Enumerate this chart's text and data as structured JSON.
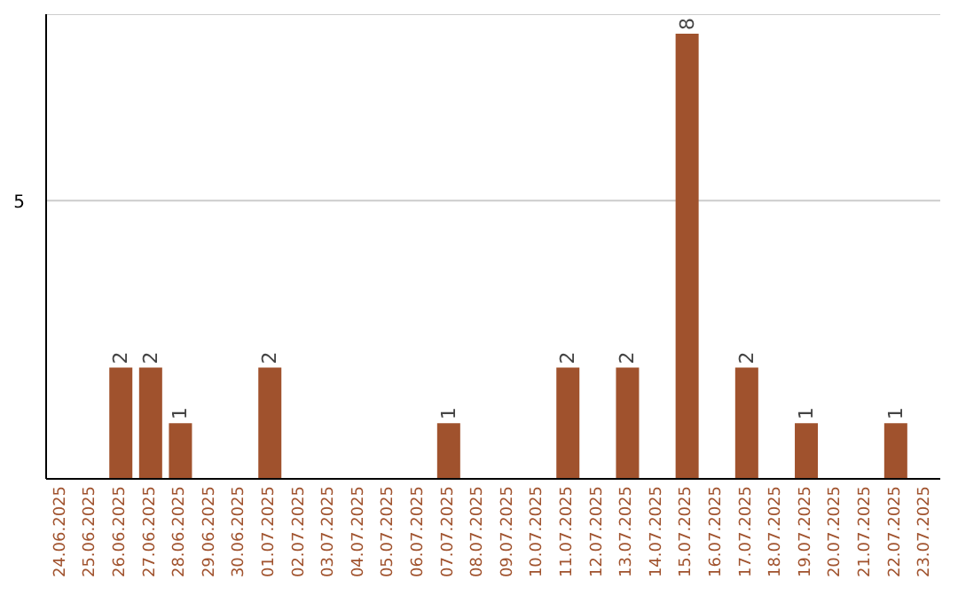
{
  "chart_data": {
    "type": "bar",
    "categories": [
      "24.06.2025",
      "25.06.2025",
      "26.06.2025",
      "27.06.2025",
      "28.06.2025",
      "29.06.2025",
      "30.06.2025",
      "01.07.2025",
      "02.07.2025",
      "03.07.2025",
      "04.07.2025",
      "05.07.2025",
      "06.07.2025",
      "07.07.2025",
      "08.07.2025",
      "09.07.2025",
      "10.07.2025",
      "11.07.2025",
      "12.07.2025",
      "13.07.2025",
      "14.07.2025",
      "15.07.2025",
      "16.07.2025",
      "17.07.2025",
      "18.07.2025",
      "19.07.2025",
      "20.07.2025",
      "21.07.2025",
      "22.07.2025",
      "23.07.2025"
    ],
    "values": [
      0,
      0,
      2,
      2,
      1,
      0,
      0,
      2,
      0,
      0,
      0,
      0,
      0,
      1,
      0,
      0,
      0,
      2,
      0,
      2,
      0,
      8,
      0,
      2,
      0,
      1,
      0,
      0,
      1,
      0
    ],
    "value_labels": [
      null,
      null,
      "2",
      "2",
      "1",
      null,
      null,
      "2",
      null,
      null,
      null,
      null,
      null,
      "1",
      null,
      null,
      null,
      "2",
      null,
      "2",
      null,
      "8",
      null,
      "2",
      null,
      "1",
      null,
      null,
      "1",
      null
    ],
    "color": "#a0522d",
    "ylim": [
      0,
      8.35
    ],
    "yticks": [
      5
    ],
    "grid": "y"
  }
}
